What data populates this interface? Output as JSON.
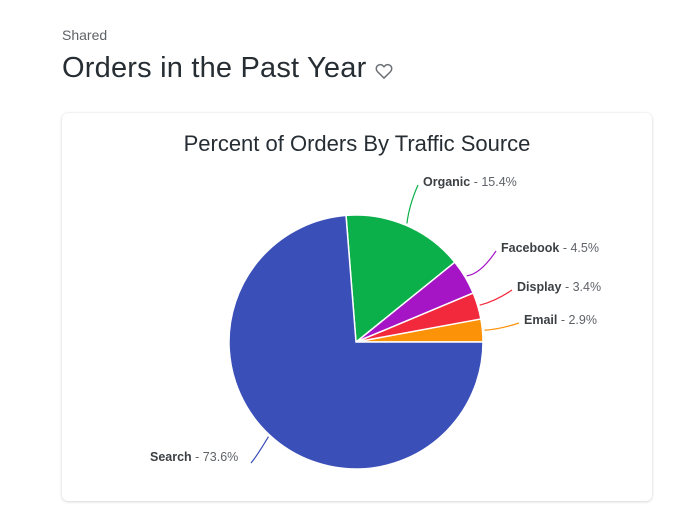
{
  "header": {
    "breadcrumb": "Shared",
    "title": "Orders in the Past Year"
  },
  "chart_data": {
    "type": "pie",
    "title": "Percent of Orders By Traffic Source",
    "slices": [
      {
        "label": "Search",
        "value": 73.6,
        "display": " - 73.6%",
        "color": "#3b4fb8"
      },
      {
        "label": "Organic",
        "value": 15.4,
        "display": " - 15.4%",
        "color": "#0bb04a"
      },
      {
        "label": "Facebook",
        "value": 4.5,
        "display": " - 4.5%",
        "color": "#a514c5"
      },
      {
        "label": "Display",
        "value": 3.4,
        "display": " - 3.4%",
        "color": "#f2293c"
      },
      {
        "label": "Email",
        "value": 2.9,
        "display": " - 2.9%",
        "color": "#fc9208"
      }
    ]
  }
}
